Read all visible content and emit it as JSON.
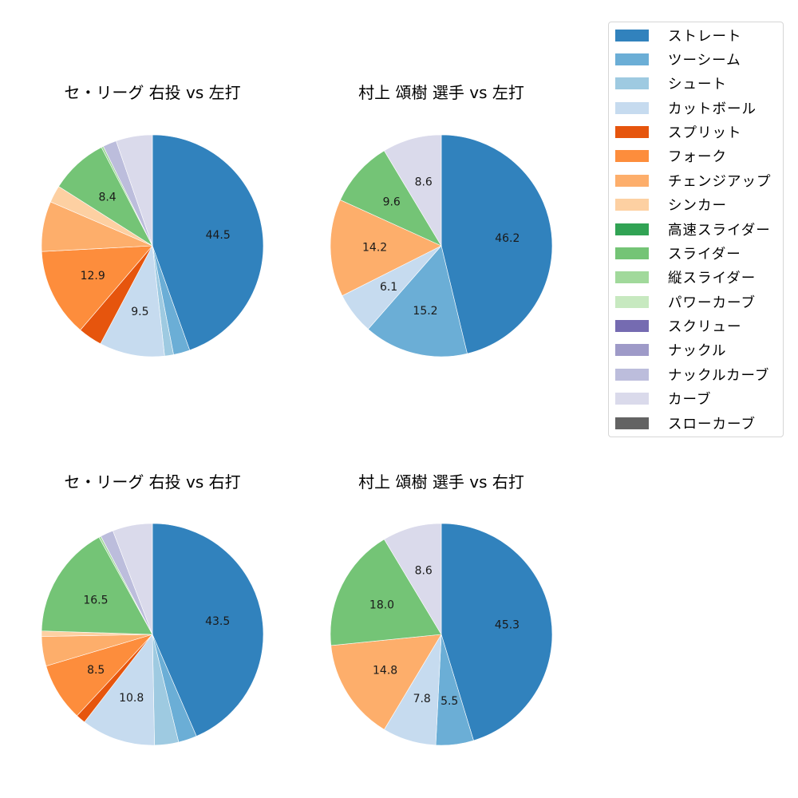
{
  "legend": {
    "items": [
      {
        "label": "ストレート",
        "color": "#3182bd"
      },
      {
        "label": "ツーシーム",
        "color": "#6baed6"
      },
      {
        "label": "シュート",
        "color": "#9ecae1"
      },
      {
        "label": "カットボール",
        "color": "#c6dbef"
      },
      {
        "label": "スプリット",
        "color": "#e6550d"
      },
      {
        "label": "フォーク",
        "color": "#fd8d3c"
      },
      {
        "label": "チェンジアップ",
        "color": "#fdae6b"
      },
      {
        "label": "シンカー",
        "color": "#fdd0a2"
      },
      {
        "label": "高速スライダー",
        "color": "#31a354"
      },
      {
        "label": "スライダー",
        "color": "#74c476"
      },
      {
        "label": "縦スライダー",
        "color": "#a1d99b"
      },
      {
        "label": "パワーカーブ",
        "color": "#c7e9c0"
      },
      {
        "label": "スクリュー",
        "color": "#756bb1"
      },
      {
        "label": "ナックル",
        "color": "#9e9ac8"
      },
      {
        "label": "ナックルカーブ",
        "color": "#bcbddc"
      },
      {
        "label": "カーブ",
        "color": "#dadaeb"
      },
      {
        "label": "スローカーブ",
        "color": "#636363"
      }
    ]
  },
  "chart_data": [
    {
      "type": "pie",
      "title": "セ・リーグ 右投 vs 左打",
      "start_angle": 90,
      "direction": "clockwise",
      "labels_shown_min": 5.0,
      "categories": [
        "ストレート",
        "ツーシーム",
        "シュート",
        "カットボール",
        "スプリット",
        "フォーク",
        "チェンジアップ",
        "シンカー",
        "スライダー",
        "縦スライダー",
        "ナックルカーブ",
        "カーブ"
      ],
      "values": [
        44.5,
        2.4,
        1.3,
        9.5,
        3.5,
        12.9,
        7.3,
        2.5,
        8.4,
        0.3,
        2.0,
        5.3
      ],
      "data_labels": [
        "44.5",
        "",
        "",
        "9.5",
        "",
        "12.9",
        "",
        "",
        "8.4",
        "",
        "",
        ""
      ]
    },
    {
      "type": "pie",
      "title": "村上 頌樹 選手 vs 左打",
      "start_angle": 90,
      "direction": "clockwise",
      "categories": [
        "ストレート",
        "ツーシーム",
        "カットボール",
        "チェンジアップ",
        "スライダー",
        "カーブ"
      ],
      "values": [
        46.2,
        15.2,
        6.1,
        14.2,
        9.6,
        8.6
      ],
      "data_labels": [
        "46.2",
        "15.2",
        "6.1",
        "14.2",
        "9.6",
        "8.6"
      ]
    },
    {
      "type": "pie",
      "title": "セ・リーグ 右投 vs 右打",
      "start_angle": 90,
      "direction": "clockwise",
      "categories": [
        "ストレート",
        "ツーシーム",
        "シュート",
        "カットボール",
        "スプリット",
        "フォーク",
        "チェンジアップ",
        "シンカー",
        "スライダー",
        "縦スライダー",
        "ナックルカーブ",
        "カーブ"
      ],
      "values": [
        43.5,
        2.7,
        3.5,
        10.8,
        1.4,
        8.5,
        4.3,
        0.8,
        16.5,
        0.3,
        1.9,
        5.8
      ],
      "data_labels": [
        "43.5",
        "",
        "",
        "10.8",
        "",
        "8.5",
        "",
        "",
        "16.5",
        "",
        "",
        ""
      ]
    },
    {
      "type": "pie",
      "title": "村上 頌樹 選手 vs 右打",
      "start_angle": 90,
      "direction": "clockwise",
      "categories": [
        "ストレート",
        "ツーシーム",
        "カットボール",
        "チェンジアップ",
        "スライダー",
        "カーブ"
      ],
      "values": [
        45.3,
        5.5,
        7.8,
        14.8,
        18.0,
        8.6
      ],
      "data_labels": [
        "45.3",
        "5.5",
        "7.8",
        "14.8",
        "18.0",
        "8.6"
      ]
    }
  ]
}
